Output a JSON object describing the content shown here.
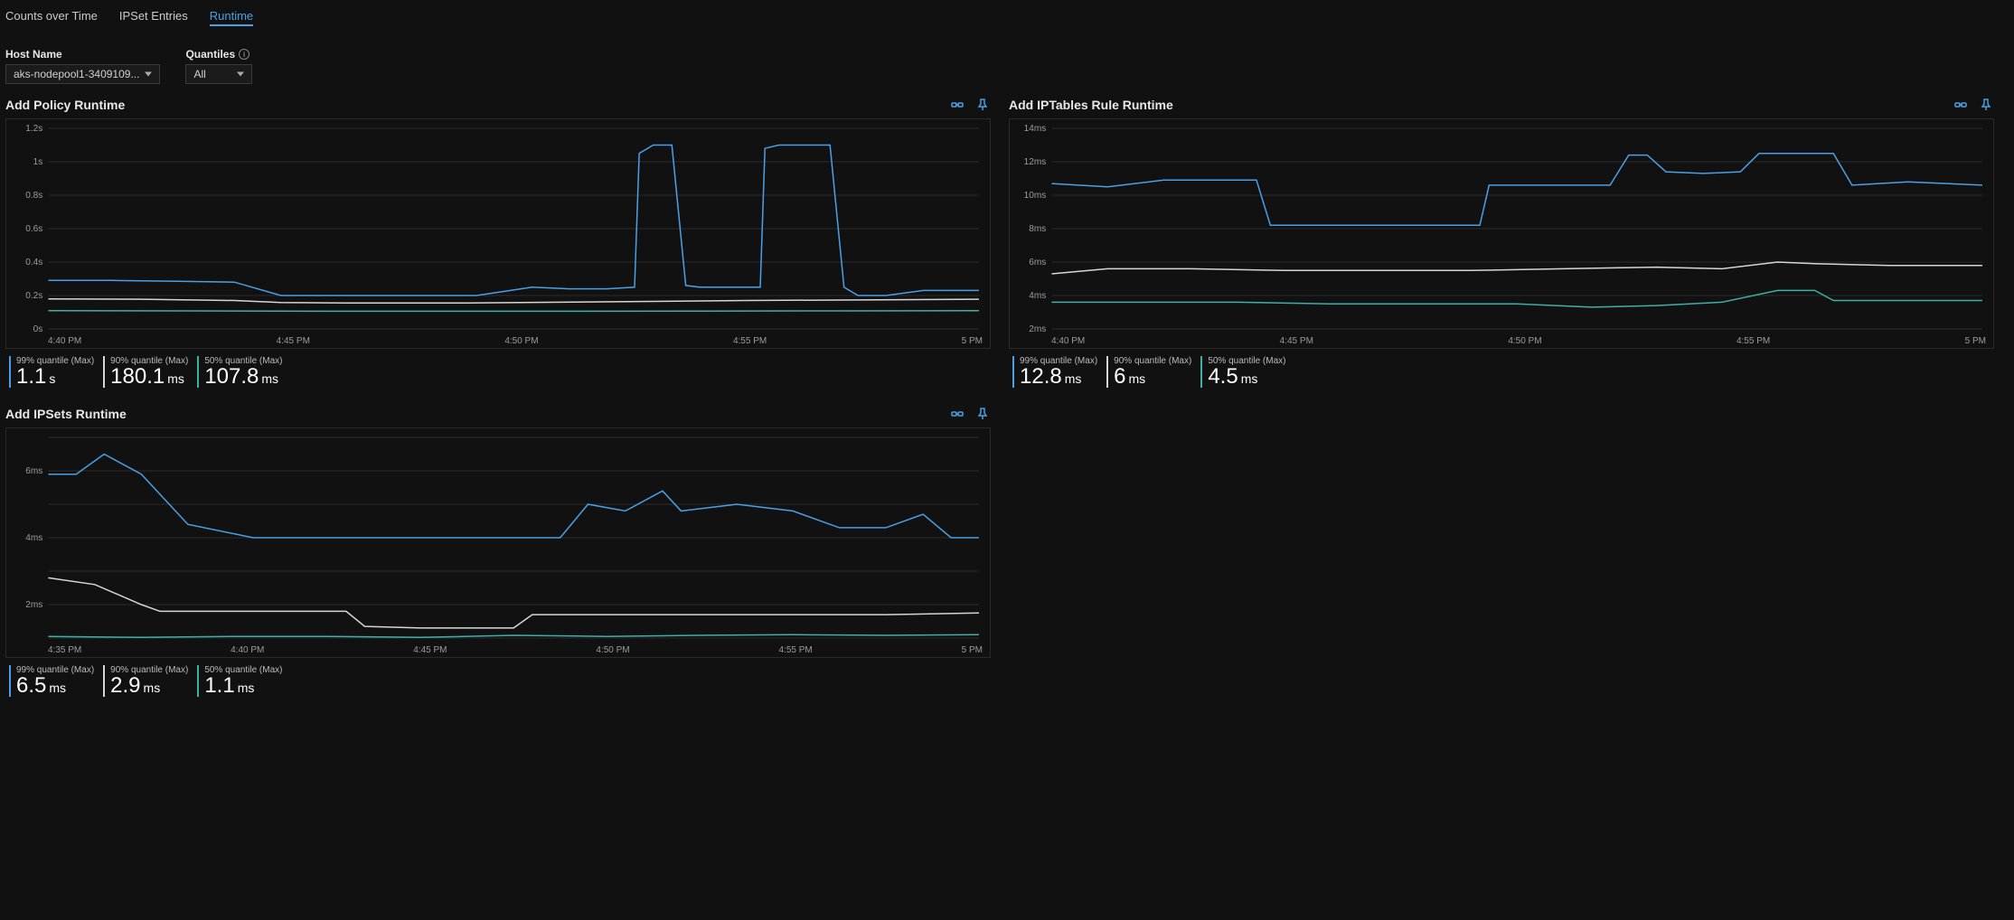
{
  "tabs": [
    {
      "label": "Counts over Time",
      "active": false
    },
    {
      "label": "IPSet Entries",
      "active": false
    },
    {
      "label": "Runtime",
      "active": true
    }
  ],
  "filters": {
    "host_name": {
      "label": "Host Name",
      "value": "aks-nodepool1-3409109..."
    },
    "quantiles": {
      "label": "Quantiles",
      "value": "All"
    }
  },
  "colors": {
    "q99": "#4aa0e6",
    "q90": "#d6d6d6",
    "q50": "#3fb0a6",
    "grid": "#2c2c2c",
    "axis_text": "#9c9c9c",
    "background": "#111111",
    "panel_border": "#2a2a2a"
  },
  "charts": [
    {
      "title": "Add Policy Runtime",
      "y_ticks": [
        "0s",
        "0.2s",
        "0.4s",
        "0.6s",
        "0.8s",
        "1s",
        "1.2s"
      ],
      "y_max": 1.2,
      "x_ticks": [
        "4:40 PM",
        "4:45 PM",
        "4:50 PM",
        "4:55 PM",
        "5 PM"
      ],
      "series": [
        {
          "key": "q99",
          "label": "99% quantile (Max)",
          "value": "1.1",
          "unit": "s",
          "points": [
            [
              0,
              0.29
            ],
            [
              0.07,
              0.29
            ],
            [
              0.14,
              0.285
            ],
            [
              0.2,
              0.28
            ],
            [
              0.25,
              0.2
            ],
            [
              0.33,
              0.2
            ],
            [
              0.4,
              0.2
            ],
            [
              0.46,
              0.2
            ],
            [
              0.52,
              0.25
            ],
            [
              0.56,
              0.24
            ],
            [
              0.6,
              0.24
            ],
            [
              0.63,
              0.25
            ],
            [
              0.635,
              1.05
            ],
            [
              0.65,
              1.1
            ],
            [
              0.67,
              1.1
            ],
            [
              0.685,
              0.26
            ],
            [
              0.7,
              0.25
            ],
            [
              0.74,
              0.25
            ],
            [
              0.76,
              0.25
            ],
            [
              0.765,
              0.25
            ],
            [
              0.77,
              1.08
            ],
            [
              0.785,
              1.1
            ],
            [
              0.82,
              1.1
            ],
            [
              0.84,
              1.1
            ],
            [
              0.855,
              0.25
            ],
            [
              0.87,
              0.2
            ],
            [
              0.9,
              0.2
            ],
            [
              0.94,
              0.23
            ],
            [
              1.0,
              0.23
            ]
          ]
        },
        {
          "key": "q90",
          "label": "90% quantile (Max)",
          "value": "180.1",
          "unit": "ms",
          "points": [
            [
              0,
              0.18
            ],
            [
              0.1,
              0.178
            ],
            [
              0.2,
              0.17
            ],
            [
              0.25,
              0.158
            ],
            [
              0.33,
              0.155
            ],
            [
              0.45,
              0.155
            ],
            [
              0.55,
              0.16
            ],
            [
              0.65,
              0.165
            ],
            [
              0.75,
              0.17
            ],
            [
              0.85,
              0.173
            ],
            [
              1.0,
              0.178
            ]
          ]
        },
        {
          "key": "q50",
          "label": "50% quantile (Max)",
          "value": "107.8",
          "unit": "ms",
          "points": [
            [
              0,
              0.11
            ],
            [
              0.15,
              0.108
            ],
            [
              0.3,
              0.106
            ],
            [
              0.5,
              0.106
            ],
            [
              0.7,
              0.107
            ],
            [
              0.85,
              0.108
            ],
            [
              1.0,
              0.11
            ]
          ]
        }
      ]
    },
    {
      "title": "Add IPTables Rule Runtime",
      "y_ticks": [
        "2ms",
        "4ms",
        "6ms",
        "8ms",
        "10ms",
        "12ms",
        "14ms"
      ],
      "y_min": 2,
      "y_max": 14,
      "x_ticks": [
        "4:40 PM",
        "4:45 PM",
        "4:50 PM",
        "4:55 PM",
        "5 PM"
      ],
      "series": [
        {
          "key": "q99",
          "label": "99% quantile (Max)",
          "value": "12.8",
          "unit": "ms",
          "points": [
            [
              0,
              10.7
            ],
            [
              0.06,
              10.5
            ],
            [
              0.12,
              10.9
            ],
            [
              0.18,
              10.9
            ],
            [
              0.22,
              10.9
            ],
            [
              0.235,
              8.2
            ],
            [
              0.3,
              8.2
            ],
            [
              0.4,
              8.2
            ],
            [
              0.46,
              8.2
            ],
            [
              0.47,
              10.6
            ],
            [
              0.55,
              10.6
            ],
            [
              0.6,
              10.6
            ],
            [
              0.62,
              12.4
            ],
            [
              0.64,
              12.4
            ],
            [
              0.66,
              11.4
            ],
            [
              0.7,
              11.3
            ],
            [
              0.74,
              11.4
            ],
            [
              0.76,
              12.5
            ],
            [
              0.8,
              12.5
            ],
            [
              0.84,
              12.5
            ],
            [
              0.86,
              10.6
            ],
            [
              0.92,
              10.8
            ],
            [
              1.0,
              10.6
            ]
          ]
        },
        {
          "key": "q90",
          "label": "90% quantile (Max)",
          "value": "6",
          "unit": "ms",
          "points": [
            [
              0,
              5.3
            ],
            [
              0.06,
              5.6
            ],
            [
              0.15,
              5.6
            ],
            [
              0.25,
              5.5
            ],
            [
              0.35,
              5.5
            ],
            [
              0.45,
              5.5
            ],
            [
              0.55,
              5.6
            ],
            [
              0.65,
              5.7
            ],
            [
              0.72,
              5.6
            ],
            [
              0.78,
              6.0
            ],
            [
              0.82,
              5.9
            ],
            [
              0.9,
              5.8
            ],
            [
              1.0,
              5.8
            ]
          ]
        },
        {
          "key": "q50",
          "label": "50% quantile (Max)",
          "value": "4.5",
          "unit": "ms",
          "points": [
            [
              0,
              3.6
            ],
            [
              0.1,
              3.6
            ],
            [
              0.2,
              3.6
            ],
            [
              0.3,
              3.5
            ],
            [
              0.4,
              3.5
            ],
            [
              0.5,
              3.5
            ],
            [
              0.58,
              3.3
            ],
            [
              0.65,
              3.4
            ],
            [
              0.72,
              3.6
            ],
            [
              0.78,
              4.3
            ],
            [
              0.82,
              4.3
            ],
            [
              0.84,
              3.7
            ],
            [
              0.92,
              3.7
            ],
            [
              1.0,
              3.7
            ]
          ]
        }
      ]
    },
    {
      "title": "Add IPSets Runtime",
      "y_ticks": [
        "",
        "2ms",
        "",
        "4ms",
        "",
        "6ms",
        ""
      ],
      "y_min": 1,
      "y_max": 7,
      "x_ticks": [
        "4:35 PM",
        "4:40 PM",
        "4:45 PM",
        "4:50 PM",
        "4:55 PM",
        "5 PM"
      ],
      "series": [
        {
          "key": "q99",
          "label": "99% quantile (Max)",
          "value": "6.5",
          "unit": "ms",
          "points": [
            [
              0,
              5.9
            ],
            [
              0.03,
              5.9
            ],
            [
              0.06,
              6.5
            ],
            [
              0.1,
              5.9
            ],
            [
              0.15,
              4.4
            ],
            [
              0.22,
              4.0
            ],
            [
              0.3,
              4.0
            ],
            [
              0.4,
              4.0
            ],
            [
              0.5,
              4.0
            ],
            [
              0.55,
              4.0
            ],
            [
              0.58,
              5.0
            ],
            [
              0.62,
              4.8
            ],
            [
              0.66,
              5.4
            ],
            [
              0.68,
              4.8
            ],
            [
              0.74,
              5.0
            ],
            [
              0.8,
              4.8
            ],
            [
              0.85,
              4.3
            ],
            [
              0.9,
              4.3
            ],
            [
              0.94,
              4.7
            ],
            [
              0.97,
              4.0
            ],
            [
              1.0,
              4.0
            ]
          ]
        },
        {
          "key": "q90",
          "label": "90% quantile (Max)",
          "value": "2.9",
          "unit": "ms",
          "points": [
            [
              0,
              2.8
            ],
            [
              0.05,
              2.6
            ],
            [
              0.1,
              2.0
            ],
            [
              0.12,
              1.8
            ],
            [
              0.2,
              1.8
            ],
            [
              0.28,
              1.8
            ],
            [
              0.32,
              1.8
            ],
            [
              0.34,
              1.35
            ],
            [
              0.4,
              1.3
            ],
            [
              0.46,
              1.3
            ],
            [
              0.5,
              1.3
            ],
            [
              0.52,
              1.7
            ],
            [
              0.6,
              1.7
            ],
            [
              0.7,
              1.7
            ],
            [
              0.8,
              1.7
            ],
            [
              0.9,
              1.7
            ],
            [
              1.0,
              1.75
            ]
          ]
        },
        {
          "key": "q50",
          "label": "50% quantile (Max)",
          "value": "1.1",
          "unit": "ms",
          "points": [
            [
              0,
              1.05
            ],
            [
              0.1,
              1.02
            ],
            [
              0.2,
              1.05
            ],
            [
              0.3,
              1.05
            ],
            [
              0.4,
              1.02
            ],
            [
              0.5,
              1.08
            ],
            [
              0.6,
              1.05
            ],
            [
              0.7,
              1.08
            ],
            [
              0.8,
              1.1
            ],
            [
              0.9,
              1.08
            ],
            [
              1.0,
              1.1
            ]
          ]
        }
      ]
    }
  ]
}
